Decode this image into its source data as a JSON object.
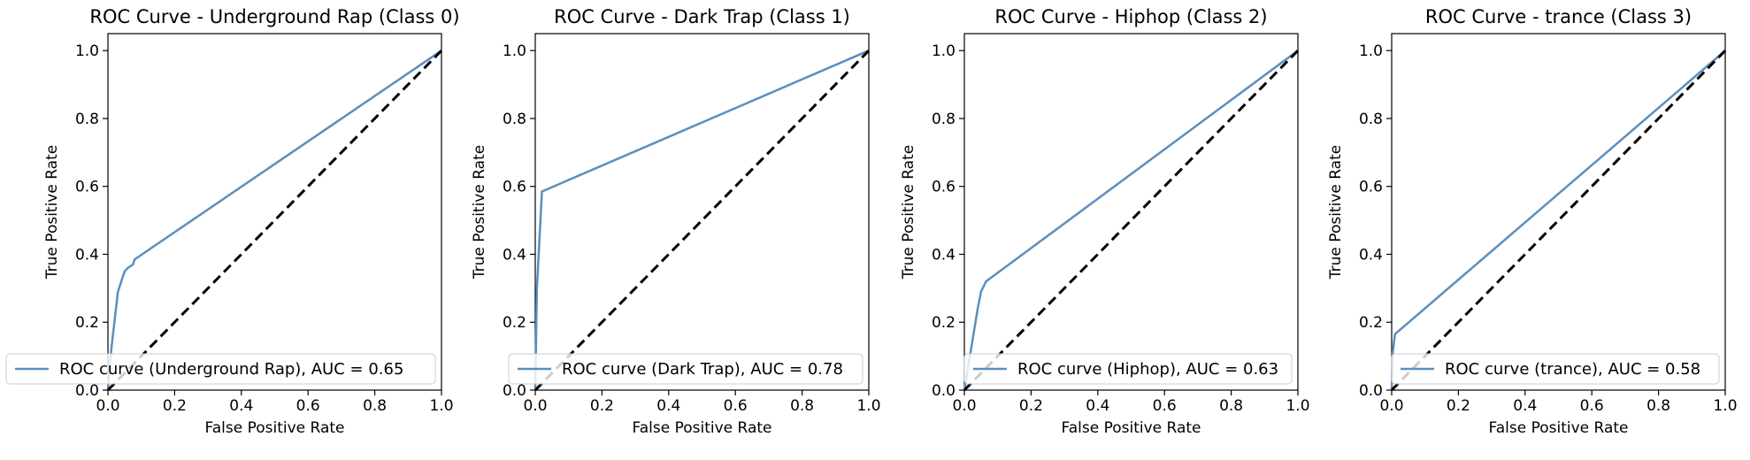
{
  "chart_data": [
    {
      "type": "line",
      "title": "ROC Curve - Underground Rap (Class 0)",
      "xlabel": "False Positive Rate",
      "ylabel": "True Positive Rate",
      "xlim": [
        0.0,
        1.0
      ],
      "ylim": [
        0.0,
        1.05
      ],
      "xticks": [
        "0.0",
        "0.2",
        "0.4",
        "0.6",
        "0.8",
        "1.0"
      ],
      "yticks": [
        "0.0",
        "0.2",
        "0.4",
        "0.6",
        "0.8",
        "1.0"
      ],
      "legend_position": "lower right",
      "series": [
        {
          "name": "ROC curve (Underground Rap), AUC = 0.65",
          "color": "#5b8fbf",
          "x": [
            0.0,
            0.01,
            0.03,
            0.05,
            0.06,
            0.075,
            0.08,
            1.0
          ],
          "y": [
            0.0,
            0.12,
            0.29,
            0.35,
            0.36,
            0.37,
            0.385,
            1.0
          ]
        },
        {
          "name": "",
          "style": "dashed",
          "color": "#000000",
          "x": [
            0.0,
            1.0
          ],
          "y": [
            0.0,
            1.0
          ]
        }
      ]
    },
    {
      "type": "line",
      "title": "ROC Curve - Dark Trap (Class 1)",
      "xlabel": "False Positive Rate",
      "ylabel": "True Positive Rate",
      "xlim": [
        0.0,
        1.0
      ],
      "ylim": [
        0.0,
        1.05
      ],
      "xticks": [
        "0.0",
        "0.2",
        "0.4",
        "0.6",
        "0.8",
        "1.0"
      ],
      "yticks": [
        "0.0",
        "0.2",
        "0.4",
        "0.6",
        "0.8",
        "1.0"
      ],
      "legend_position": "lower right",
      "series": [
        {
          "name": "ROC curve (Dark Trap), AUC = 0.78",
          "color": "#5b8fbf",
          "x": [
            0.0,
            0.005,
            0.02,
            1.0
          ],
          "y": [
            0.0,
            0.3,
            0.585,
            1.0
          ]
        },
        {
          "name": "",
          "style": "dashed",
          "color": "#000000",
          "x": [
            0.0,
            1.0
          ],
          "y": [
            0.0,
            1.0
          ]
        }
      ]
    },
    {
      "type": "line",
      "title": "ROC Curve - Hiphop (Class 2)",
      "xlabel": "False Positive Rate",
      "ylabel": "True Positive Rate",
      "xlim": [
        0.0,
        1.0
      ],
      "ylim": [
        0.0,
        1.05
      ],
      "xticks": [
        "0.0",
        "0.2",
        "0.4",
        "0.6",
        "0.8",
        "1.0"
      ],
      "yticks": [
        "0.0",
        "0.2",
        "0.4",
        "0.6",
        "0.8",
        "1.0"
      ],
      "legend_position": "lower right",
      "series": [
        {
          "name": "ROC curve (Hiphop), AUC = 0.63",
          "color": "#5b8fbf",
          "x": [
            0.0,
            0.02,
            0.04,
            0.05,
            0.065,
            1.0
          ],
          "y": [
            0.0,
            0.12,
            0.24,
            0.29,
            0.32,
            1.0
          ]
        },
        {
          "name": "",
          "style": "dashed",
          "color": "#000000",
          "x": [
            0.0,
            1.0
          ],
          "y": [
            0.0,
            1.0
          ]
        }
      ]
    },
    {
      "type": "line",
      "title": "ROC Curve - trance (Class 3)",
      "xlabel": "False Positive Rate",
      "ylabel": "True Positive Rate",
      "xlim": [
        0.0,
        1.0
      ],
      "ylim": [
        0.0,
        1.05
      ],
      "xticks": [
        "0.0",
        "0.2",
        "0.4",
        "0.6",
        "0.8",
        "1.0"
      ],
      "yticks": [
        "0.0",
        "0.2",
        "0.4",
        "0.6",
        "0.8",
        "1.0"
      ],
      "legend_position": "lower right",
      "series": [
        {
          "name": "ROC curve (trance), AUC = 0.58",
          "color": "#5b8fbf",
          "x": [
            0.0,
            0.003,
            0.01,
            1.0
          ],
          "y": [
            0.0,
            0.11,
            0.165,
            1.0
          ]
        },
        {
          "name": "",
          "style": "dashed",
          "color": "#000000",
          "x": [
            0.0,
            1.0
          ],
          "y": [
            0.0,
            1.0
          ]
        }
      ]
    }
  ]
}
